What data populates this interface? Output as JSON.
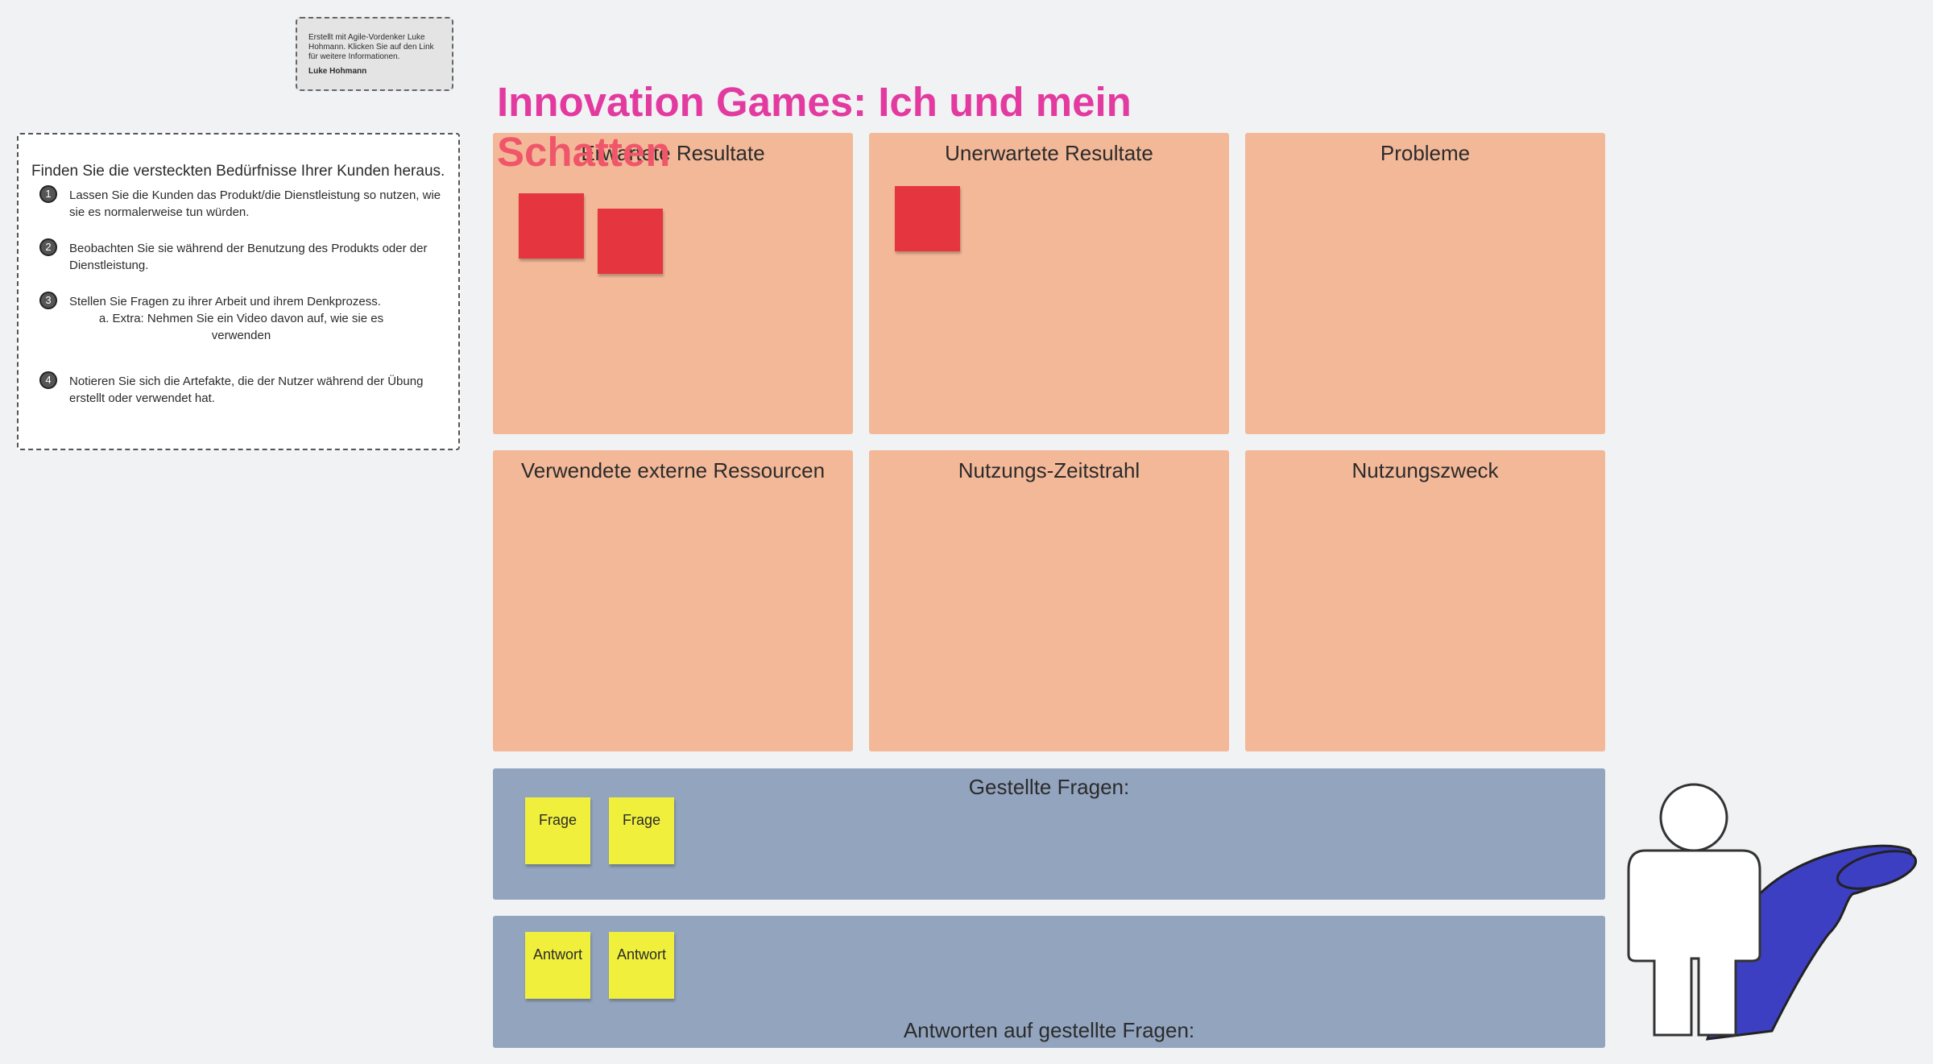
{
  "credit": {
    "text": "Erstellt mit Agile-Vordenker Luke Hohmann. Klicken Sie auf den Link für weitere Informationen.",
    "author": "Luke Hohmann"
  },
  "title": "Innovation Games: Ich und mein Schatten",
  "instructions": {
    "intro": "Finden Sie die versteckten Bedürfnisse Ihrer Kunden heraus.",
    "steps": [
      {
        "number": "1",
        "text": "Lassen Sie die Kunden das Produkt/die Dienstleistung so nutzen, wie sie es normalerweise tun würden."
      },
      {
        "number": "2",
        "text": "Beobachten Sie sie während der Benutzung des Produkts oder der Dienstleistung."
      },
      {
        "number": "3",
        "text": "Stellen Sie Fragen zu ihrer Arbeit und ihrem Denkprozess.",
        "sub": "a. Extra: Nehmen Sie ein Video davon auf, wie sie es verwenden"
      },
      {
        "number": "4",
        "text": "Notieren Sie sich die Artefakte, die der Nutzer während der Übung erstellt oder verwendet hat."
      }
    ]
  },
  "panels": [
    "Erwartete Resultate",
    "Unerwartete Resultate",
    "Probleme",
    "Verwendete externe Ressourcen",
    "Nutzungs-Zeitstrahl",
    "Nutzungszweck"
  ],
  "questions": {
    "label": "Gestellte Fragen:",
    "notes": [
      "Frage",
      "Frage"
    ]
  },
  "answers": {
    "label": "Antworten auf gestellte Fragen:",
    "notes": [
      "Antwort",
      "Antwort"
    ]
  }
}
